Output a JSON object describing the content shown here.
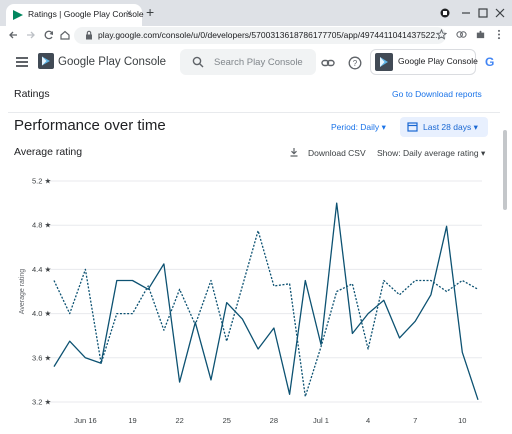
{
  "browser": {
    "tab_title": "Ratings | Google Play Console",
    "tab_close": "×",
    "new_tab": "+",
    "url": "play.google.com/console/u/0/developers/5700313618786177705/app/4974411041437522..."
  },
  "header": {
    "product_name": "Google Play Console",
    "search_placeholder": "Search Play Console",
    "developer_name": "Google Play Console",
    "google_letter": "G"
  },
  "page": {
    "title": "Ratings",
    "download_link": "Go to Download reports",
    "section_title": "Performance over time",
    "period_select": "Period: Daily",
    "range_button": "Last 28 days",
    "chart_title": "Average rating",
    "download_csv": "Download CSV",
    "show_select": "Show: Daily average rating"
  },
  "colors": {
    "accent": "#1a73e8",
    "line": "#0d5272"
  },
  "chart_data": {
    "type": "line",
    "title": "Average rating",
    "ylabel": "Average rating",
    "ylim": [
      3.2,
      5.2
    ],
    "yticks": [
      "5.2 ★",
      "4.8 ★",
      "4.4 ★",
      "4.0 ★",
      "3.6 ★",
      "3.2 ★"
    ],
    "ytick_values": [
      5.2,
      4.8,
      4.4,
      4.0,
      3.6,
      3.2
    ],
    "xtick_labels": [
      "Jun 16",
      "19",
      "22",
      "25",
      "28",
      "Jul 1",
      "4",
      "7",
      "10"
    ],
    "xtick_days": [
      2,
      5,
      8,
      11,
      14,
      17,
      20,
      23,
      26
    ],
    "grid": "horizontal",
    "series": [
      {
        "style": "solid",
        "values": [
          3.52,
          3.75,
          3.6,
          3.55,
          4.3,
          4.3,
          4.22,
          4.45,
          3.38,
          3.92,
          3.4,
          4.1,
          3.95,
          3.68,
          3.87,
          3.27,
          4.3,
          3.72,
          5.0,
          3.82,
          4.0,
          4.12,
          3.78,
          3.93,
          4.17,
          4.79,
          3.65,
          3.22
        ]
      },
      {
        "style": "dotted",
        "values": [
          4.3,
          4.0,
          4.4,
          3.55,
          4.0,
          4.0,
          4.25,
          3.85,
          4.22,
          3.9,
          4.3,
          3.75,
          4.25,
          4.75,
          4.25,
          4.27,
          3.25,
          3.7,
          4.2,
          4.27,
          3.68,
          4.3,
          4.17,
          4.3,
          4.3,
          4.2,
          4.3,
          4.22
        ]
      }
    ]
  }
}
